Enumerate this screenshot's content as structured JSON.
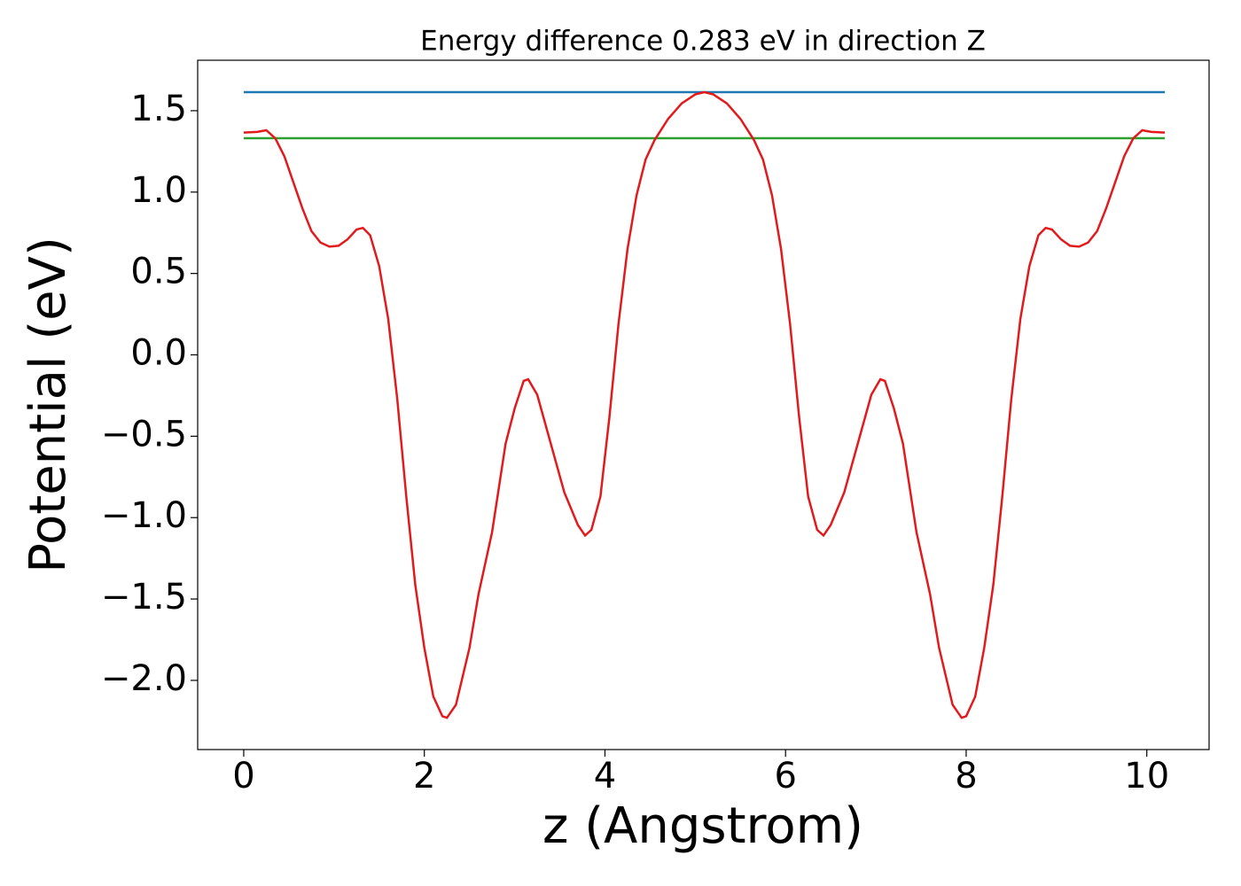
{
  "chart_data": {
    "type": "line",
    "title": "Energy difference 0.283 eV in direction Z",
    "xlabel": "z (Angstrom)",
    "ylabel": "Potential (eV)",
    "xlim": [
      -0.51,
      10.69
    ],
    "ylim": [
      -2.425,
      1.81
    ],
    "xticks": [
      0,
      2,
      4,
      6,
      8,
      10
    ],
    "yticks": [
      1.5,
      {
        "value": 1.0,
        "label": "1.0"
      },
      0.5,
      {
        "value": 0.0,
        "label": "0.0"
      },
      {
        "value": -0.5,
        "label": "−0.5"
      },
      {
        "value": -1.0,
        "label": "−1.0"
      },
      {
        "value": -1.5,
        "label": "−1.5"
      },
      {
        "value": -2.0,
        "label": "−2.0"
      }
    ],
    "grid": false,
    "series": [
      {
        "color": "#1f77b4",
        "x": [
          0,
          10.2
        ],
        "values": [
          1.614,
          1.614
        ]
      },
      {
        "color": "#2ca02c",
        "x": [
          0,
          10.2
        ],
        "values": [
          1.331,
          1.331
        ]
      },
      {
        "color": "#e31a1c",
        "x": [
          0,
          0.15,
          0.25,
          0.35,
          0.45,
          0.55,
          0.65,
          0.75,
          0.85,
          0.95,
          1.05,
          1.15,
          1.25,
          1.32,
          1.4,
          1.5,
          1.6,
          1.7,
          1.8,
          1.9,
          2.0,
          2.1,
          2.2,
          2.25,
          2.35,
          2.5,
          2.6,
          2.75,
          2.9,
          3.0,
          3.1,
          3.15,
          3.25,
          3.4,
          3.55,
          3.7,
          3.78,
          3.85,
          3.95,
          4.05,
          4.15,
          4.25,
          4.35,
          4.45,
          4.55,
          4.7,
          4.85,
          5.0,
          5.1,
          5.2,
          5.35,
          5.5,
          5.65,
          5.75,
          5.85,
          5.95,
          6.05,
          6.15,
          6.25,
          6.35,
          6.42,
          6.5,
          6.65,
          6.8,
          6.95,
          7.05,
          7.1,
          7.2,
          7.3,
          7.45,
          7.6,
          7.7,
          7.85,
          7.95,
          8.0,
          8.1,
          8.2,
          8.3,
          8.4,
          8.5,
          8.6,
          8.7,
          8.8,
          8.88,
          8.95,
          9.05,
          9.15,
          9.25,
          9.35,
          9.45,
          9.55,
          9.65,
          9.75,
          9.85,
          9.95,
          10.05,
          10.2
        ],
        "values": [
          1.366,
          1.37,
          1.38,
          1.33,
          1.22,
          1.06,
          0.9,
          0.76,
          0.69,
          0.665,
          0.67,
          0.71,
          0.77,
          0.78,
          0.735,
          0.545,
          0.22,
          -0.27,
          -0.87,
          -1.415,
          -1.8,
          -2.1,
          -2.22,
          -2.23,
          -2.15,
          -1.8,
          -1.47,
          -1.09,
          -0.545,
          -0.33,
          -0.16,
          -0.15,
          -0.245,
          -0.545,
          -0.845,
          -1.045,
          -1.11,
          -1.075,
          -0.87,
          -0.38,
          0.19,
          0.65,
          0.98,
          1.2,
          1.32,
          1.45,
          1.545,
          1.6,
          1.614,
          1.6,
          1.545,
          1.45,
          1.32,
          1.2,
          0.98,
          0.65,
          0.19,
          -0.38,
          -0.87,
          -1.075,
          -1.11,
          -1.045,
          -0.845,
          -0.545,
          -0.245,
          -0.15,
          -0.16,
          -0.33,
          -0.545,
          -1.09,
          -1.47,
          -1.8,
          -2.15,
          -2.23,
          -2.22,
          -2.1,
          -1.8,
          -1.415,
          -0.87,
          -0.27,
          0.22,
          0.545,
          0.735,
          0.78,
          0.77,
          0.71,
          0.67,
          0.665,
          0.69,
          0.76,
          0.9,
          1.06,
          1.22,
          1.33,
          1.38,
          1.37,
          1.366
        ]
      }
    ]
  }
}
